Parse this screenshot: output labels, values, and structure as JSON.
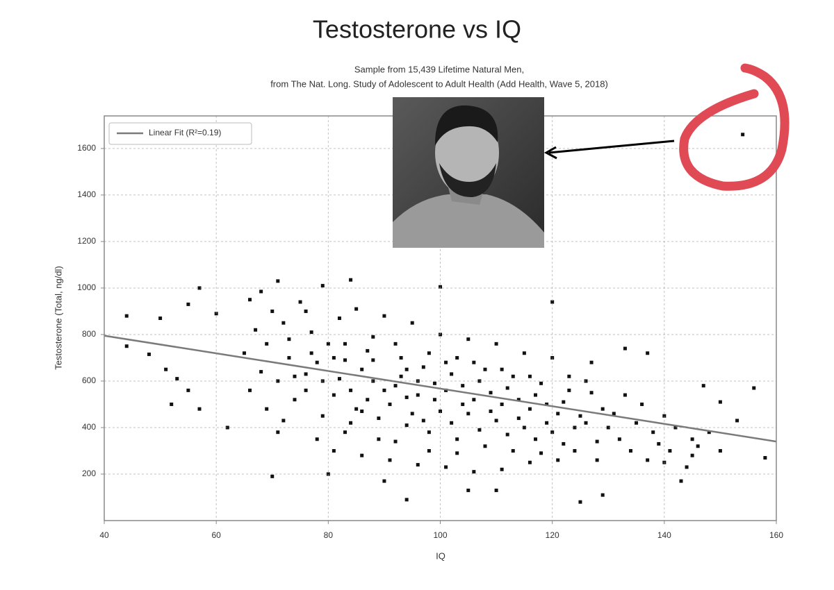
{
  "chart_data": {
    "type": "scatter",
    "title": "Testosterone vs IQ",
    "subtitle": [
      "Sample from 15,439 Lifetime Natural Men,",
      "from The Nat. Long. Study of Adolescent to Adult Health (Add Health, Wave 5, 2018)"
    ],
    "x_label": "IQ",
    "y_label": "Testosterone (Total, ng/dl)",
    "xlim": [
      40,
      160
    ],
    "ylim": [
      0,
      1740
    ],
    "xticks": [
      40,
      60,
      80,
      100,
      120,
      140,
      160
    ],
    "yticks": [
      200,
      400,
      600,
      800,
      1000,
      1200,
      1400,
      1600
    ],
    "grid": true,
    "legend": "upper left",
    "series": [
      {
        "color": "#111111",
        "x": [
          44,
          44,
          48,
          50,
          51,
          52,
          53,
          55,
          55,
          57,
          57,
          60,
          62,
          68,
          70,
          71,
          79,
          80,
          84,
          94,
          100,
          120,
          125,
          129,
          143,
          147,
          150,
          153,
          156,
          158,
          154,
          140,
          137,
          133,
          145,
          90,
          105,
          110,
          65,
          66,
          67,
          68,
          69,
          70,
          66,
          69,
          71,
          72,
          73,
          74,
          72,
          75,
          73,
          74,
          71,
          76,
          77,
          78,
          79,
          76,
          78,
          77,
          79,
          80,
          76,
          81,
          82,
          83,
          84,
          81,
          82,
          83,
          84,
          85,
          85,
          83,
          81,
          86,
          87,
          88,
          89,
          86,
          87,
          88,
          89,
          90,
          90,
          86,
          88,
          91,
          92,
          93,
          94,
          91,
          92,
          93,
          94,
          95,
          95,
          92,
          94,
          96,
          97,
          98,
          99,
          96,
          97,
          98,
          99,
          100,
          100,
          96,
          98,
          101,
          102,
          103,
          104,
          101,
          102,
          103,
          104,
          105,
          105,
          101,
          103,
          106,
          107,
          108,
          109,
          106,
          107,
          108,
          109,
          110,
          110,
          106,
          111,
          112,
          113,
          114,
          111,
          112,
          113,
          114,
          115,
          115,
          111,
          116,
          117,
          118,
          119,
          116,
          117,
          118,
          119,
          120,
          120,
          116,
          121,
          122,
          123,
          124,
          121,
          122,
          123,
          124,
          125,
          126,
          127,
          128,
          129,
          126,
          128,
          130,
          127,
          131,
          132,
          133,
          134,
          135,
          136,
          137,
          138,
          139,
          140,
          141,
          142,
          144,
          145,
          146,
          148,
          150
        ],
        "values": [
          880,
          750,
          715,
          870,
          650,
          500,
          610,
          930,
          560,
          1000,
          480,
          890,
          400,
          985,
          190,
          1030,
          1010,
          200,
          1035,
          90,
          1005,
          940,
          80,
          110,
          170,
          580,
          510,
          430,
          570,
          270,
          1660,
          250,
          720,
          740,
          280,
          170,
          130,
          130,
          720,
          560,
          820,
          640,
          480,
          900,
          950,
          760,
          600,
          850,
          700,
          520,
          430,
          940,
          780,
          620,
          380,
          560,
          810,
          680,
          450,
          900,
          350,
          720,
          600,
          760,
          630,
          540,
          870,
          690,
          420,
          300,
          610,
          760,
          560,
          480,
          910,
          380,
          700,
          650,
          520,
          790,
          440,
          280,
          730,
          600,
          350,
          560,
          880,
          470,
          690,
          500,
          760,
          620,
          410,
          260,
          580,
          700,
          530,
          460,
          850,
          340,
          650,
          600,
          430,
          720,
          520,
          240,
          660,
          380,
          590,
          470,
          800,
          540,
          300,
          560,
          420,
          700,
          500,
          230,
          630,
          350,
          580,
          460,
          780,
          680,
          290,
          520,
          390,
          650,
          470,
          210,
          600,
          320,
          550,
          430,
          760,
          680,
          500,
          370,
          620,
          440,
          220,
          570,
          300,
          520,
          400,
          720,
          650,
          480,
          350,
          590,
          420,
          250,
          540,
          290,
          500,
          380,
          700,
          620,
          460,
          330,
          560,
          400,
          260,
          510,
          620,
          300,
          450,
          420,
          550,
          340,
          480,
          600,
          260,
          400,
          680,
          460,
          350,
          540,
          300,
          420,
          500,
          260,
          380,
          330,
          450,
          300,
          400,
          230,
          350,
          320,
          380,
          300
        ]
      },
      {
        "name": "Linear Fit (R²=0.19)",
        "type": "line",
        "color": "#7a7a7a",
        "x": [
          40,
          160
        ],
        "values": [
          795,
          340
        ]
      }
    ]
  }
}
